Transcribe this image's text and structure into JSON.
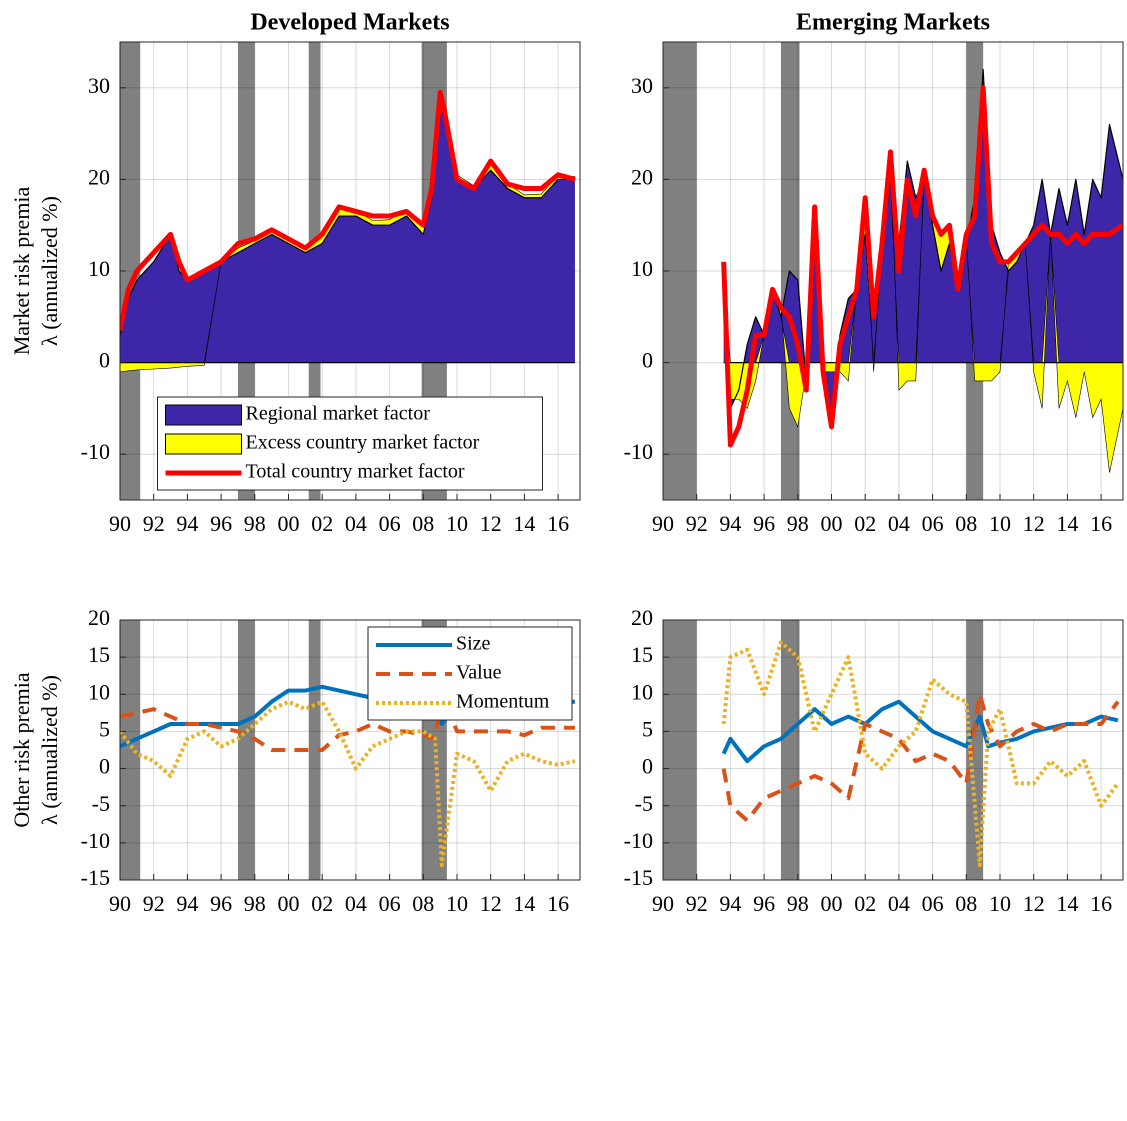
{
  "chart_data": [
    {
      "type": "area",
      "title": "Developed Markets",
      "ylabel": [
        "Market risk premia",
        "λ (annualized %)"
      ],
      "x": [
        1990,
        1990.5,
        1991,
        1992,
        1993,
        1993.5,
        1994,
        1995,
        1996,
        1997,
        1998,
        1999,
        2000,
        2001,
        2002,
        2003,
        2004,
        2005,
        2006,
        2007,
        2008,
        2008.5,
        2009,
        2009.2,
        2010,
        2011,
        2012,
        2013,
        2014,
        2015,
        2016,
        2017
      ],
      "series": [
        {
          "name": "Regional market factor",
          "color": "#3e26a8",
          "style": "area",
          "values": [
            3,
            7,
            9,
            11,
            14,
            10,
            9,
            10,
            11,
            12,
            13,
            14,
            13,
            12,
            13,
            16,
            16,
            15,
            15,
            16,
            14,
            18,
            28,
            27,
            20,
            19,
            21,
            19,
            18,
            18,
            20,
            20
          ]
        },
        {
          "name": "Excess country market factor",
          "color": "#ffff00",
          "style": "area",
          "values": [
            -1,
            -0.9,
            -0.8,
            -0.7,
            -0.6,
            -0.5,
            -0.4,
            -0.3,
            0,
            0.5,
            0.3,
            0.5,
            0.5,
            0.5,
            0.8,
            1,
            0.6,
            0.5,
            0.6,
            0.7,
            0.8,
            1,
            1.5,
            1,
            0.5,
            0.3,
            0.6,
            0.5,
            0.3,
            0.4,
            0.5,
            0.3
          ]
        },
        {
          "name": "Total country market factor",
          "color": "#ff0000",
          "style": "line",
          "values": [
            3.5,
            8,
            10,
            12,
            14,
            11,
            9,
            10,
            11,
            13,
            13.5,
            14.5,
            13.5,
            12.5,
            14,
            17,
            16.5,
            16,
            16,
            16.5,
            15,
            19,
            29.5,
            28,
            20,
            19,
            22,
            19.5,
            19,
            19,
            20.5,
            20
          ]
        }
      ],
      "shaded_periods": [
        [
          1990,
          1991.2
        ],
        [
          1997,
          1998
        ],
        [
          2001.2,
          2001.9
        ],
        [
          2007.9,
          2009.4
        ]
      ],
      "xlim": [
        1990,
        2017.3
      ],
      "ylim": [
        -15,
        35
      ],
      "yticks": [
        -10,
        0,
        10,
        20,
        30
      ],
      "xticks": [
        {
          "value": 1990,
          "label": "90"
        },
        {
          "value": 1992,
          "label": "92"
        },
        {
          "value": 1994,
          "label": "94"
        },
        {
          "value": 1996,
          "label": "96"
        },
        {
          "value": 1998,
          "label": "98"
        },
        {
          "value": 2000,
          "label": "00"
        },
        {
          "value": 2002,
          "label": "02"
        },
        {
          "value": 2004,
          "label": "04"
        },
        {
          "value": 2006,
          "label": "06"
        },
        {
          "value": 2008,
          "label": "08"
        },
        {
          "value": 2010,
          "label": "10"
        },
        {
          "value": 2012,
          "label": "12"
        },
        {
          "value": 2014,
          "label": "14"
        },
        {
          "value": 2016,
          "label": "16"
        }
      ],
      "grid": true,
      "legend": "lower center"
    },
    {
      "type": "area",
      "title": "Emerging Markets",
      "x": [
        1993.6,
        1994,
        1994.5,
        1995,
        1995.5,
        1996,
        1996.5,
        1997,
        1997.5,
        1998,
        1998.5,
        1999,
        1999.5,
        2000,
        2000.5,
        2001,
        2001.5,
        2002,
        2002.5,
        2003,
        2003.5,
        2004,
        2004.5,
        2005,
        2005.5,
        2006,
        2006.5,
        2007,
        2007.5,
        2008,
        2008.5,
        2009,
        2009.5,
        2010,
        2010.5,
        2011,
        2011.5,
        2012,
        2012.5,
        2013,
        2013.5,
        2014,
        2014.5,
        2015,
        2015.5,
        2016,
        2016.5,
        2017.3
      ],
      "series": [
        {
          "name": "Regional market factor",
          "color": "#3e26a8",
          "style": "area",
          "values": [
            10,
            -5,
            -3,
            2,
            5,
            3,
            8,
            5,
            10,
            9,
            -2,
            15,
            0,
            -6,
            3,
            7,
            8,
            14,
            6,
            12,
            20,
            13,
            22,
            18,
            20,
            15,
            10,
            13,
            8,
            13,
            18,
            32,
            15,
            12,
            10,
            11,
            13,
            15,
            20,
            14,
            19,
            15,
            20,
            14,
            20,
            18,
            26,
            20
          ]
        },
        {
          "name": "Excess country market factor",
          "color": "#ffff00",
          "style": "area",
          "values": [
            1,
            -4,
            -4,
            -5,
            -2,
            0,
            0,
            1,
            -5,
            -7,
            -1,
            2,
            -1,
            -1,
            -1,
            -2,
            0,
            4,
            -1,
            1,
            3,
            -3,
            -2,
            -2,
            1,
            1,
            4,
            2,
            0,
            1,
            -2,
            -2,
            -2,
            -1,
            1,
            1,
            0,
            -1,
            -5,
            0,
            -5,
            -2,
            -6,
            -1,
            -6,
            -4,
            -12,
            -5
          ]
        },
        {
          "name": "Total country market factor",
          "color": "#ff0000",
          "style": "line",
          "values": [
            11,
            -9,
            -7,
            -3,
            3,
            3,
            8,
            6,
            5,
            2,
            -3,
            17,
            -1,
            -7,
            2,
            5,
            8,
            18,
            5,
            13,
            23,
            10,
            20,
            16,
            21,
            16,
            14,
            15,
            8,
            14,
            16,
            30,
            13,
            11,
            11,
            12,
            13,
            14,
            15,
            14,
            14,
            13,
            14,
            13,
            14,
            14,
            14,
            15
          ]
        }
      ],
      "shaded_periods": [
        [
          1990,
          1992
        ],
        [
          1997,
          1998.1
        ],
        [
          2008,
          2009
        ]
      ],
      "xlim": [
        1990,
        2017.3
      ],
      "ylim": [
        -15,
        35
      ],
      "yticks": [
        -10,
        0,
        10,
        20,
        30
      ],
      "xticks": [
        {
          "value": 1990,
          "label": "90"
        },
        {
          "value": 1992,
          "label": "92"
        },
        {
          "value": 1994,
          "label": "94"
        },
        {
          "value": 1996,
          "label": "96"
        },
        {
          "value": 1998,
          "label": "98"
        },
        {
          "value": 2000,
          "label": "00"
        },
        {
          "value": 2002,
          "label": "02"
        },
        {
          "value": 2004,
          "label": "04"
        },
        {
          "value": 2006,
          "label": "06"
        },
        {
          "value": 2008,
          "label": "08"
        },
        {
          "value": 2010,
          "label": "10"
        },
        {
          "value": 2012,
          "label": "12"
        },
        {
          "value": 2014,
          "label": "14"
        },
        {
          "value": 2016,
          "label": "16"
        }
      ],
      "grid": true
    },
    {
      "type": "line",
      "ylabel": [
        "Other risk premia",
        "λ (annualized %)"
      ],
      "x": [
        1990,
        1991,
        1992,
        1993,
        1994,
        1995,
        1996,
        1997,
        1998,
        1999,
        2000,
        2001,
        2002,
        2003,
        2004,
        2005,
        2006,
        2007,
        2008,
        2008.7,
        2009.1,
        2010,
        2011,
        2012,
        2013,
        2014,
        2015,
        2016,
        2017
      ],
      "series": [
        {
          "name": "Size",
          "color": "#0072bd",
          "style": "solid",
          "values": [
            3,
            4,
            5,
            6,
            6,
            6,
            6,
            6,
            7,
            9,
            10.5,
            10.5,
            11,
            10.5,
            10,
            9.5,
            9.5,
            9.5,
            9,
            8,
            6,
            8.5,
            9,
            8.5,
            8.5,
            9,
            9,
            9,
            9
          ]
        },
        {
          "name": "Value",
          "color": "#d95319",
          "style": "dashed",
          "values": [
            7,
            7.5,
            8,
            7,
            6,
            6,
            5.5,
            5,
            4,
            2.5,
            2.5,
            2.5,
            2.5,
            4.5,
            5,
            6,
            5,
            5,
            4.5,
            4,
            10,
            5,
            5,
            5,
            5,
            4.5,
            5.5,
            5.5,
            5.5
          ]
        },
        {
          "name": "Momentum",
          "color": "#edb120",
          "style": "dotted",
          "values": [
            5,
            2,
            1,
            -1,
            4,
            5,
            3,
            4,
            6,
            8,
            9,
            8,
            9,
            5,
            0,
            3,
            4,
            5,
            5,
            4,
            -13,
            2,
            1,
            -3,
            1,
            2,
            1,
            0.5,
            1
          ]
        }
      ],
      "shaded_periods": [
        [
          1990,
          1991.2
        ],
        [
          1997,
          1998
        ],
        [
          2001.2,
          2001.9
        ],
        [
          2007.9,
          2009.4
        ]
      ],
      "xlim": [
        1990,
        2017.3
      ],
      "ylim": [
        -15,
        20
      ],
      "yticks": [
        -15,
        -10,
        -5,
        0,
        5,
        10,
        15,
        20
      ],
      "xticks": [
        {
          "value": 1990,
          "label": "90"
        },
        {
          "value": 1992,
          "label": "92"
        },
        {
          "value": 1994,
          "label": "94"
        },
        {
          "value": 1996,
          "label": "96"
        },
        {
          "value": 1998,
          "label": "98"
        },
        {
          "value": 2000,
          "label": "00"
        },
        {
          "value": 2002,
          "label": "02"
        },
        {
          "value": 2004,
          "label": "04"
        },
        {
          "value": 2006,
          "label": "06"
        },
        {
          "value": 2008,
          "label": "08"
        },
        {
          "value": 2010,
          "label": "10"
        },
        {
          "value": 2012,
          "label": "12"
        },
        {
          "value": 2014,
          "label": "14"
        },
        {
          "value": 2016,
          "label": "16"
        }
      ],
      "grid": true,
      "legend": "upper right"
    },
    {
      "type": "line",
      "x": [
        1993.6,
        1994,
        1995,
        1996,
        1997,
        1998,
        1999,
        2000,
        2001,
        2002,
        2003,
        2004,
        2005,
        2006,
        2007,
        2008,
        2008.8,
        2009.3,
        2010,
        2011,
        2012,
        2013,
        2014,
        2015,
        2016,
        2017
      ],
      "series": [
        {
          "name": "Size",
          "color": "#0072bd",
          "style": "solid",
          "values": [
            2,
            4,
            1,
            3,
            4,
            6,
            8,
            6,
            7,
            6,
            8,
            9,
            7,
            5,
            4,
            3,
            7,
            3,
            3.5,
            4,
            5,
            5.5,
            6,
            6,
            7,
            6.5
          ]
        },
        {
          "name": "Value",
          "color": "#d95319",
          "style": "dashed",
          "values": [
            0,
            -5,
            -7,
            -4,
            -3,
            -2,
            -1,
            -2,
            -4,
            6,
            5,
            4,
            1,
            2,
            1,
            -2,
            10,
            6,
            3,
            5,
            6,
            5,
            6,
            6,
            6,
            9
          ]
        },
        {
          "name": "Momentum",
          "color": "#edb120",
          "style": "dotted",
          "values": [
            6,
            15,
            16,
            10,
            17,
            15,
            5,
            10,
            15,
            2,
            0,
            3,
            5,
            12,
            10,
            9,
            -13,
            5,
            8,
            -2,
            -2,
            1,
            -1,
            1,
            -5,
            -2
          ]
        }
      ],
      "shaded_periods": [
        [
          1990,
          1992
        ],
        [
          1997,
          1998.1
        ],
        [
          2008,
          2009
        ]
      ],
      "xlim": [
        1990,
        2017.3
      ],
      "ylim": [
        -15,
        20
      ],
      "yticks": [
        -15,
        -10,
        -5,
        0,
        5,
        10,
        15,
        20
      ],
      "xticks": [
        {
          "value": 1990,
          "label": "90"
        },
        {
          "value": 1992,
          "label": "92"
        },
        {
          "value": 1994,
          "label": "94"
        },
        {
          "value": 1996,
          "label": "96"
        },
        {
          "value": 1998,
          "label": "98"
        },
        {
          "value": 2000,
          "label": "00"
        },
        {
          "value": 2002,
          "label": "02"
        },
        {
          "value": 2004,
          "label": "04"
        },
        {
          "value": 2006,
          "label": "06"
        },
        {
          "value": 2008,
          "label": "08"
        },
        {
          "value": 2010,
          "label": "10"
        },
        {
          "value": 2012,
          "label": "12"
        },
        {
          "value": 2014,
          "label": "14"
        },
        {
          "value": 2016,
          "label": "16"
        }
      ],
      "grid": true
    }
  ]
}
